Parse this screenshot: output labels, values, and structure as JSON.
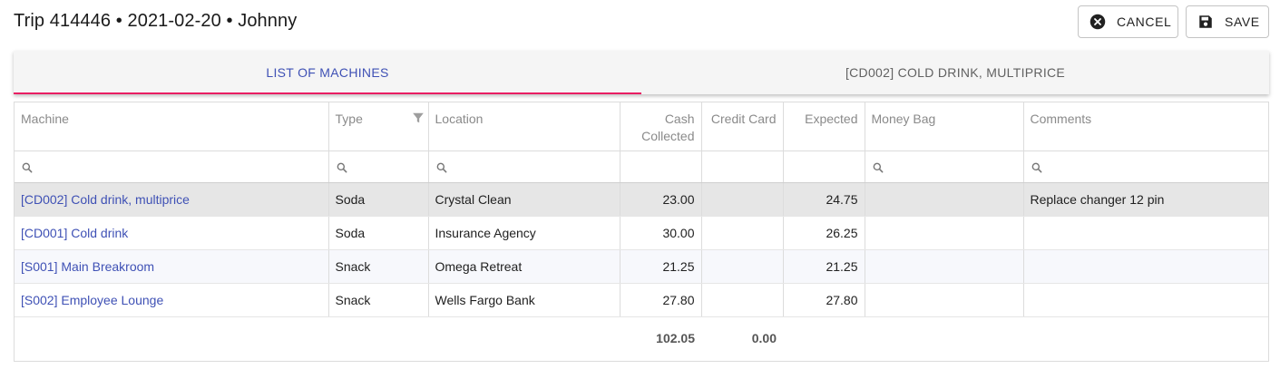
{
  "header": {
    "title": "Trip 414446 • 2021-02-20 • Johnny",
    "cancel_label": "CANCEL",
    "save_label": "SAVE"
  },
  "tabs": [
    {
      "label": "LIST OF MACHINES",
      "active": true
    },
    {
      "label": "[CD002] COLD DRINK, MULTIPRICE",
      "active": false
    }
  ],
  "table": {
    "columns": [
      "Machine",
      "Type",
      "Location",
      "Cash Collected",
      "Credit Card",
      "Expected",
      "Money Bag",
      "Comments"
    ],
    "rows": [
      {
        "machine": "[CD002] Cold drink, multiprice",
        "type": "Soda",
        "location": "Crystal Clean",
        "cash": "23.00",
        "credit": "",
        "expected": "24.75",
        "bag": "",
        "comments": "Replace changer 12 pin"
      },
      {
        "machine": "[CD001] Cold drink",
        "type": "Soda",
        "location": "Insurance Agency",
        "cash": "30.00",
        "credit": "",
        "expected": "26.25",
        "bag": "",
        "comments": ""
      },
      {
        "machine": "[S001] Main Breakroom",
        "type": "Snack",
        "location": "Omega Retreat",
        "cash": "21.25",
        "credit": "",
        "expected": "21.25",
        "bag": "",
        "comments": ""
      },
      {
        "machine": "[S002] Employee Lounge",
        "type": "Snack",
        "location": "Wells Fargo Bank",
        "cash": "27.80",
        "credit": "",
        "expected": "27.80",
        "bag": "",
        "comments": ""
      }
    ],
    "totals": {
      "cash": "102.05",
      "credit": "0.00"
    }
  },
  "colors": {
    "accent": "#3f51b5",
    "tab_indicator": "#e91e63"
  },
  "icons": {
    "cancel": "close-circle-icon",
    "save": "floppy-disk-icon",
    "filter": "funnel-icon",
    "search": "search-icon"
  }
}
